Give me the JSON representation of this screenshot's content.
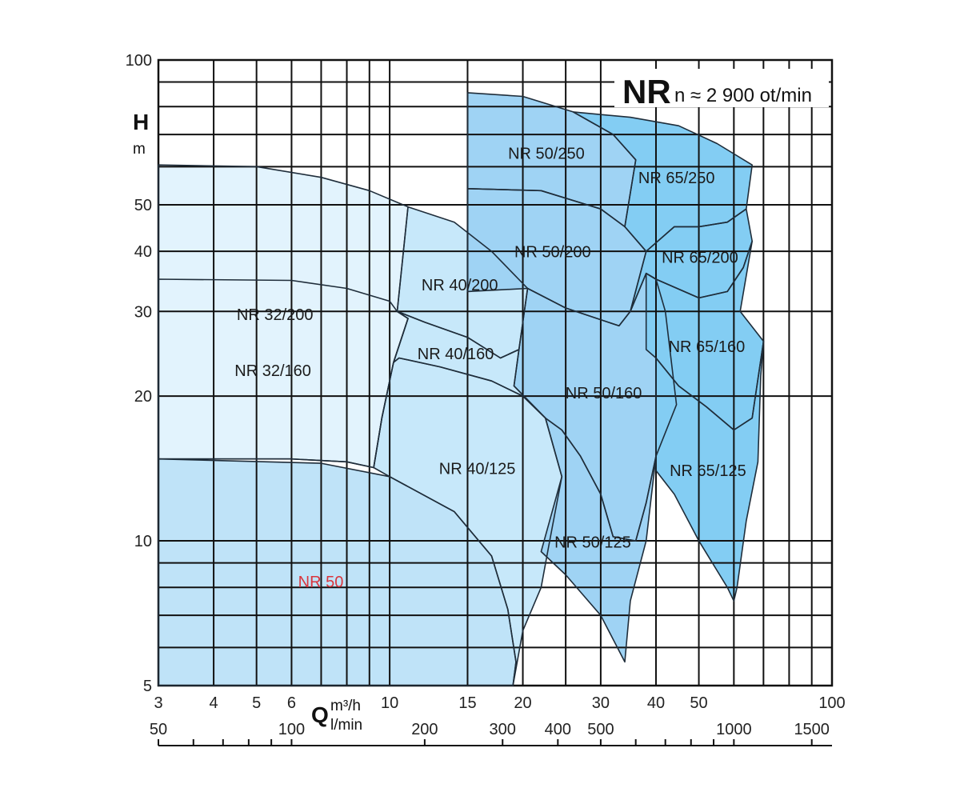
{
  "chart_data": {
    "type": "area",
    "title": "NR",
    "subtitle": "n ≈ 2 900 ot/min",
    "x_axis": {
      "symbol": "Q",
      "unit_primary": "m³/h",
      "unit_secondary": "l/min",
      "scale": "log",
      "range": [
        3,
        100
      ],
      "ticks": [
        3,
        4,
        5,
        6,
        10,
        15,
        20,
        30,
        40,
        50,
        100
      ],
      "tick_labels": [
        "3",
        "4",
        "5",
        "6",
        "10",
        "15",
        "20",
        "30",
        "40",
        "50",
        "100"
      ],
      "secondary_ticks": [
        50,
        100,
        200,
        300,
        400,
        500,
        1000,
        1500
      ],
      "secondary_tick_labels": [
        "50",
        "100",
        "200",
        "300",
        "400",
        "500",
        "1000",
        "1500"
      ]
    },
    "y_axis": {
      "symbol": "H",
      "unit": "m",
      "scale": "log",
      "range": [
        5,
        100
      ],
      "ticks": [
        5,
        10,
        20,
        30,
        40,
        50,
        100
      ],
      "tick_labels": [
        "5",
        "10",
        "20",
        "30",
        "40",
        "50",
        "100"
      ]
    },
    "grid": true,
    "highlight_color": "#d9363e",
    "zones": [
      {
        "label": "NR 50",
        "highlight": true,
        "fill": "#bfe3f8",
        "polygon": [
          [
            3,
            14.8
          ],
          [
            7,
            14.5
          ],
          [
            10,
            13.6
          ],
          [
            14,
            11.5
          ],
          [
            17,
            9.3
          ],
          [
            18.5,
            7.2
          ],
          [
            19.3,
            5.6
          ],
          [
            19,
            5
          ],
          [
            3,
            5
          ]
        ]
      },
      {
        "label": "NR 32/200",
        "highlight": false,
        "fill": "#e2f3fd",
        "polygon": [
          [
            3,
            60.5
          ],
          [
            5,
            60
          ],
          [
            7,
            57
          ],
          [
            9,
            53.5
          ],
          [
            11,
            49.5
          ],
          [
            10.4,
            30
          ],
          [
            11,
            29
          ],
          [
            10.2,
            23.5
          ],
          [
            9.6,
            18
          ],
          [
            9.2,
            14.2
          ],
          [
            8,
            14.6
          ],
          [
            6,
            14.8
          ],
          [
            3,
            14.8
          ]
        ]
      },
      {
        "label": "NR 32/160",
        "highlight": false,
        "fill": "#e2f3fd",
        "polygon": [
          [
            3,
            35
          ],
          [
            6,
            34.8
          ],
          [
            8,
            33.5
          ],
          [
            10,
            31.5
          ],
          [
            10.4,
            30
          ],
          [
            11,
            29
          ],
          [
            10.2,
            23.5
          ],
          [
            9.6,
            18
          ],
          [
            9.2,
            14.2
          ],
          [
            8,
            14.6
          ],
          [
            6,
            14.8
          ],
          [
            3,
            14.8
          ]
        ]
      },
      {
        "label": "NR 40/200",
        "highlight": false,
        "fill": "#c7e8fa",
        "polygon": [
          [
            11,
            49.5
          ],
          [
            14,
            46
          ],
          [
            17,
            40
          ],
          [
            20.5,
            33.5
          ],
          [
            19.6,
            25
          ],
          [
            17.8,
            24
          ],
          [
            15,
            26.5
          ],
          [
            12,
            28.5
          ],
          [
            10.4,
            30
          ]
        ]
      },
      {
        "label": "NR 40/160",
        "highlight": false,
        "fill": "#c7e8fa",
        "polygon": [
          [
            10.4,
            30
          ],
          [
            12,
            28.5
          ],
          [
            15,
            26.5
          ],
          [
            17.8,
            24
          ],
          [
            19.6,
            25
          ],
          [
            19.1,
            21
          ],
          [
            22.5,
            18
          ],
          [
            20,
            20
          ],
          [
            17,
            21.5
          ],
          [
            13,
            23
          ],
          [
            10.5,
            24
          ],
          [
            10.2,
            23.5
          ],
          [
            11,
            29
          ]
        ]
      },
      {
        "label": "NR 40/125",
        "highlight": false,
        "fill": "#c7e8fa",
        "polygon": [
          [
            10.5,
            24
          ],
          [
            13,
            23
          ],
          [
            17,
            21.5
          ],
          [
            20,
            20
          ],
          [
            22.5,
            18
          ],
          [
            24.5,
            13.6
          ],
          [
            23,
            10
          ],
          [
            22,
            8
          ],
          [
            20,
            6.5
          ],
          [
            19,
            5
          ],
          [
            19.3,
            5.6
          ],
          [
            18.5,
            7.2
          ],
          [
            17,
            9.3
          ],
          [
            14,
            11.5
          ],
          [
            10,
            13.6
          ],
          [
            9.2,
            14.2
          ],
          [
            9.6,
            18
          ],
          [
            10.2,
            23.5
          ]
        ]
      },
      {
        "label": "NR 50/250",
        "highlight": false,
        "fill": "#9fd3f4",
        "polygon": [
          [
            15,
            85.5
          ],
          [
            20,
            84
          ],
          [
            26,
            78
          ],
          [
            32,
            70
          ],
          [
            36,
            62
          ],
          [
            34,
            45
          ],
          [
            30,
            49
          ],
          [
            22,
            53.5
          ],
          [
            15,
            54
          ]
        ]
      },
      {
        "label": "NR 50/200",
        "highlight": false,
        "fill": "#9fd3f4",
        "polygon": [
          [
            15,
            54
          ],
          [
            22,
            53.5
          ],
          [
            30,
            49
          ],
          [
            34,
            45
          ],
          [
            38,
            40
          ],
          [
            35,
            30
          ],
          [
            33,
            28
          ],
          [
            25,
            30.5
          ],
          [
            20.5,
            33.5
          ],
          [
            15,
            33
          ]
        ]
      },
      {
        "label": "NR 50/160",
        "highlight": false,
        "fill": "#9fd3f4",
        "polygon": [
          [
            20.5,
            33.5
          ],
          [
            25,
            30.5
          ],
          [
            33,
            28
          ],
          [
            35,
            30
          ],
          [
            38,
            36
          ],
          [
            40,
            35
          ],
          [
            42,
            30
          ],
          [
            44.5,
            19.2
          ],
          [
            40,
            15
          ],
          [
            38,
            12
          ],
          [
            36,
            10
          ],
          [
            32,
            10.2
          ],
          [
            30,
            12.5
          ],
          [
            27,
            15
          ],
          [
            24.5,
            17
          ],
          [
            22.5,
            18
          ],
          [
            19.1,
            21
          ],
          [
            19.6,
            25
          ]
        ]
      },
      {
        "label": "NR 50/125",
        "highlight": false,
        "fill": "#9fd3f4",
        "polygon": [
          [
            22.5,
            18
          ],
          [
            24.5,
            17
          ],
          [
            27,
            15
          ],
          [
            30,
            12.5
          ],
          [
            32,
            10.2
          ],
          [
            36,
            10
          ],
          [
            38,
            12
          ],
          [
            40,
            15
          ],
          [
            38,
            10
          ],
          [
            35,
            7.5
          ],
          [
            34,
            5.6
          ],
          [
            30,
            7
          ],
          [
            25,
            8.5
          ],
          [
            22,
            9.5
          ],
          [
            24.5,
            13.6
          ]
        ]
      },
      {
        "label": "NR 65/250",
        "highlight": false,
        "fill": "#83cdf3",
        "polygon": [
          [
            26,
            78
          ],
          [
            35,
            76
          ],
          [
            45,
            73
          ],
          [
            55,
            67
          ],
          [
            66,
            60.5
          ],
          [
            64,
            49
          ],
          [
            58,
            46
          ],
          [
            50,
            45
          ],
          [
            44,
            45
          ],
          [
            38,
            40
          ],
          [
            34,
            45
          ],
          [
            36,
            62
          ],
          [
            32,
            70
          ]
        ]
      },
      {
        "label": "NR 65/200",
        "highlight": false,
        "fill": "#83cdf3",
        "polygon": [
          [
            44,
            45
          ],
          [
            50,
            45
          ],
          [
            58,
            46
          ],
          [
            64,
            49
          ],
          [
            66,
            42
          ],
          [
            63,
            37
          ],
          [
            58,
            33
          ],
          [
            50,
            32
          ],
          [
            40,
            35
          ],
          [
            38,
            36
          ],
          [
            35,
            30
          ],
          [
            38,
            40
          ]
        ]
      },
      {
        "label": "NR 65/160",
        "highlight": false,
        "fill": "#83cdf3",
        "polygon": [
          [
            38,
            36
          ],
          [
            40,
            35
          ],
          [
            50,
            32
          ],
          [
            58,
            33
          ],
          [
            63,
            37
          ],
          [
            66,
            42
          ],
          [
            62,
            30
          ],
          [
            70,
            26
          ],
          [
            66,
            18
          ],
          [
            60,
            17
          ],
          [
            52,
            19
          ],
          [
            45,
            21
          ],
          [
            40,
            24
          ],
          [
            38,
            25
          ]
        ]
      },
      {
        "label": "NR 65/125",
        "highlight": false,
        "fill": "#83cdf3",
        "polygon": [
          [
            40,
            24
          ],
          [
            45,
            21
          ],
          [
            52,
            19
          ],
          [
            60,
            17
          ],
          [
            66,
            18
          ],
          [
            70,
            26
          ],
          [
            69,
            22
          ],
          [
            68,
            14.6
          ],
          [
            64,
            11
          ],
          [
            61,
            8
          ],
          [
            60,
            7.5
          ],
          [
            58,
            8
          ],
          [
            50,
            10
          ],
          [
            44,
            12.5
          ],
          [
            40,
            14
          ]
        ]
      }
    ]
  }
}
